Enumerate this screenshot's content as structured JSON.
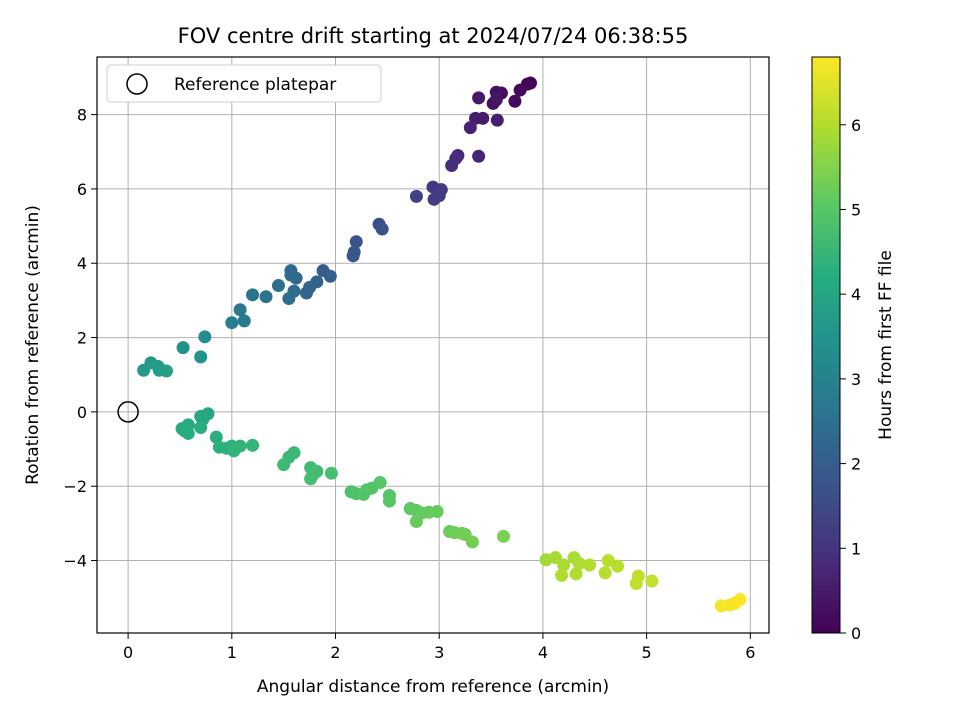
{
  "chart_data": {
    "type": "scatter",
    "title": "FOV centre drift starting at 2024/07/24 06:38:55",
    "xlabel": "Angular distance from reference (arcmin)",
    "ylabel": "Rotation from reference (arcmin)",
    "xlim": [
      -0.3,
      6.18
    ],
    "ylim": [
      -5.95,
      9.55
    ],
    "xticks": [
      0,
      1,
      2,
      3,
      4,
      5,
      6
    ],
    "yticks": [
      -4,
      -2,
      0,
      2,
      4,
      6,
      8
    ],
    "xtick_labels": [
      "0",
      "1",
      "2",
      "3",
      "4",
      "5",
      "6"
    ],
    "ytick_labels": [
      "−4",
      "−2",
      "0",
      "2",
      "4",
      "6",
      "8"
    ],
    "grid": true,
    "legend": {
      "position": "top-left",
      "label": "Reference platepar",
      "marker": "hollow-circle"
    },
    "reference_point": {
      "x": 0,
      "y": 0
    },
    "colorbar": {
      "label": "Hours from first FF file",
      "range": [
        0,
        6.8
      ],
      "ticks": [
        0,
        1,
        2,
        3,
        4,
        5,
        6
      ],
      "tick_labels": [
        "0",
        "1",
        "2",
        "3",
        "4",
        "5",
        "6"
      ],
      "colormap": "viridis"
    },
    "points": [
      {
        "x": 3.88,
        "y": 8.85,
        "h": 0.05
      },
      {
        "x": 3.85,
        "y": 8.82,
        "h": 0.1
      },
      {
        "x": 3.78,
        "y": 8.66,
        "h": 0.15
      },
      {
        "x": 3.73,
        "y": 8.36,
        "h": 0.2
      },
      {
        "x": 3.6,
        "y": 8.58,
        "h": 0.25
      },
      {
        "x": 3.55,
        "y": 8.6,
        "h": 0.3
      },
      {
        "x": 3.52,
        "y": 8.3,
        "h": 0.35
      },
      {
        "x": 3.55,
        "y": 8.4,
        "h": 0.4
      },
      {
        "x": 3.38,
        "y": 8.45,
        "h": 0.45
      },
      {
        "x": 3.42,
        "y": 7.9,
        "h": 0.5
      },
      {
        "x": 3.35,
        "y": 7.9,
        "h": 0.55
      },
      {
        "x": 3.56,
        "y": 7.85,
        "h": 0.6
      },
      {
        "x": 3.3,
        "y": 7.65,
        "h": 0.65
      },
      {
        "x": 3.38,
        "y": 6.88,
        "h": 0.7
      },
      {
        "x": 3.18,
        "y": 6.9,
        "h": 0.8
      },
      {
        "x": 3.16,
        "y": 6.82,
        "h": 0.85
      },
      {
        "x": 3.12,
        "y": 6.63,
        "h": 0.9
      },
      {
        "x": 2.94,
        "y": 6.05,
        "h": 1.1
      },
      {
        "x": 3.02,
        "y": 5.98,
        "h": 1.15
      },
      {
        "x": 3.0,
        "y": 5.82,
        "h": 1.2
      },
      {
        "x": 2.95,
        "y": 5.72,
        "h": 1.25
      },
      {
        "x": 2.78,
        "y": 5.8,
        "h": 1.3
      },
      {
        "x": 2.42,
        "y": 5.05,
        "h": 1.6
      },
      {
        "x": 2.45,
        "y": 4.92,
        "h": 1.65
      },
      {
        "x": 2.2,
        "y": 4.58,
        "h": 1.75
      },
      {
        "x": 2.18,
        "y": 4.3,
        "h": 1.8
      },
      {
        "x": 2.17,
        "y": 4.2,
        "h": 1.85
      },
      {
        "x": 1.88,
        "y": 3.8,
        "h": 2.0
      },
      {
        "x": 1.95,
        "y": 3.65,
        "h": 2.05
      },
      {
        "x": 1.82,
        "y": 3.5,
        "h": 2.1
      },
      {
        "x": 1.75,
        "y": 3.35,
        "h": 2.15
      },
      {
        "x": 1.72,
        "y": 3.2,
        "h": 2.2
      },
      {
        "x": 1.62,
        "y": 3.6,
        "h": 2.25
      },
      {
        "x": 1.57,
        "y": 3.8,
        "h": 2.3
      },
      {
        "x": 1.57,
        "y": 3.68,
        "h": 2.35
      },
      {
        "x": 1.6,
        "y": 3.25,
        "h": 2.4
      },
      {
        "x": 1.55,
        "y": 3.05,
        "h": 2.45
      },
      {
        "x": 1.45,
        "y": 3.4,
        "h": 2.5
      },
      {
        "x": 1.33,
        "y": 3.1,
        "h": 2.55
      },
      {
        "x": 1.2,
        "y": 3.15,
        "h": 2.6
      },
      {
        "x": 1.08,
        "y": 2.75,
        "h": 2.7
      },
      {
        "x": 1.12,
        "y": 2.45,
        "h": 2.75
      },
      {
        "x": 1.0,
        "y": 2.4,
        "h": 2.85
      },
      {
        "x": 0.74,
        "y": 2.02,
        "h": 3.3
      },
      {
        "x": 0.53,
        "y": 1.73,
        "h": 3.4
      },
      {
        "x": 0.7,
        "y": 1.48,
        "h": 3.45
      },
      {
        "x": 0.29,
        "y": 1.22,
        "h": 3.6
      },
      {
        "x": 0.22,
        "y": 1.32,
        "h": 3.65
      },
      {
        "x": 0.15,
        "y": 1.12,
        "h": 3.7
      },
      {
        "x": 0.3,
        "y": 1.12,
        "h": 3.75
      },
      {
        "x": 0.37,
        "y": 1.1,
        "h": 3.8
      },
      {
        "x": 0.77,
        "y": -0.05,
        "h": 4.0
      },
      {
        "x": 0.7,
        "y": -0.12,
        "h": 4.05
      },
      {
        "x": 0.72,
        "y": -0.2,
        "h": 4.08
      },
      {
        "x": 0.58,
        "y": -0.35,
        "h": 4.1
      },
      {
        "x": 0.52,
        "y": -0.45,
        "h": 4.15
      },
      {
        "x": 0.55,
        "y": -0.52,
        "h": 4.18
      },
      {
        "x": 0.58,
        "y": -0.58,
        "h": 4.2
      },
      {
        "x": 0.7,
        "y": -0.42,
        "h": 4.22
      },
      {
        "x": 0.85,
        "y": -0.68,
        "h": 4.25
      },
      {
        "x": 0.88,
        "y": -0.95,
        "h": 4.3
      },
      {
        "x": 0.95,
        "y": -0.98,
        "h": 4.33
      },
      {
        "x": 1.0,
        "y": -0.92,
        "h": 4.36
      },
      {
        "x": 1.02,
        "y": -1.05,
        "h": 4.4
      },
      {
        "x": 1.08,
        "y": -0.92,
        "h": 4.42
      },
      {
        "x": 1.2,
        "y": -0.9,
        "h": 4.45
      },
      {
        "x": 1.6,
        "y": -1.1,
        "h": 4.55
      },
      {
        "x": 1.55,
        "y": -1.22,
        "h": 4.58
      },
      {
        "x": 1.5,
        "y": -1.42,
        "h": 4.6
      },
      {
        "x": 1.76,
        "y": -1.5,
        "h": 4.65
      },
      {
        "x": 1.82,
        "y": -1.6,
        "h": 4.68
      },
      {
        "x": 1.78,
        "y": -1.7,
        "h": 4.7
      },
      {
        "x": 1.76,
        "y": -1.8,
        "h": 4.72
      },
      {
        "x": 1.96,
        "y": -1.65,
        "h": 4.75
      },
      {
        "x": 2.15,
        "y": -2.15,
        "h": 4.85
      },
      {
        "x": 2.2,
        "y": -2.2,
        "h": 4.87
      },
      {
        "x": 2.27,
        "y": -2.22,
        "h": 4.9
      },
      {
        "x": 2.3,
        "y": -2.1,
        "h": 4.92
      },
      {
        "x": 2.35,
        "y": -2.05,
        "h": 4.94
      },
      {
        "x": 2.43,
        "y": -1.9,
        "h": 4.96
      },
      {
        "x": 2.52,
        "y": -2.25,
        "h": 4.98
      },
      {
        "x": 2.52,
        "y": -2.4,
        "h": 5.0
      },
      {
        "x": 2.72,
        "y": -2.6,
        "h": 5.1
      },
      {
        "x": 2.78,
        "y": -2.65,
        "h": 5.12
      },
      {
        "x": 2.83,
        "y": -2.72,
        "h": 5.14
      },
      {
        "x": 2.9,
        "y": -2.7,
        "h": 5.16
      },
      {
        "x": 2.98,
        "y": -2.68,
        "h": 5.18
      },
      {
        "x": 2.78,
        "y": -2.95,
        "h": 5.2
      },
      {
        "x": 3.1,
        "y": -3.22,
        "h": 5.25
      },
      {
        "x": 3.15,
        "y": -3.25,
        "h": 5.27
      },
      {
        "x": 3.22,
        "y": -3.27,
        "h": 5.29
      },
      {
        "x": 3.25,
        "y": -3.3,
        "h": 5.31
      },
      {
        "x": 3.32,
        "y": -3.5,
        "h": 5.33
      },
      {
        "x": 3.62,
        "y": -3.35,
        "h": 5.4
      },
      {
        "x": 4.03,
        "y": -3.98,
        "h": 5.85
      },
      {
        "x": 4.12,
        "y": -3.92,
        "h": 5.88
      },
      {
        "x": 4.2,
        "y": -4.12,
        "h": 5.9
      },
      {
        "x": 4.3,
        "y": -3.92,
        "h": 5.92
      },
      {
        "x": 4.35,
        "y": -4.08,
        "h": 5.94
      },
      {
        "x": 4.18,
        "y": -4.4,
        "h": 5.96
      },
      {
        "x": 4.32,
        "y": -4.36,
        "h": 5.98
      },
      {
        "x": 4.45,
        "y": -4.12,
        "h": 6.0
      },
      {
        "x": 4.6,
        "y": -4.33,
        "h": 6.05
      },
      {
        "x": 4.63,
        "y": -4.0,
        "h": 6.08
      },
      {
        "x": 4.72,
        "y": -4.15,
        "h": 6.1
      },
      {
        "x": 4.92,
        "y": -4.42,
        "h": 6.15
      },
      {
        "x": 4.9,
        "y": -4.62,
        "h": 6.18
      },
      {
        "x": 5.05,
        "y": -4.55,
        "h": 6.2
      },
      {
        "x": 5.72,
        "y": -5.22,
        "h": 6.7
      },
      {
        "x": 5.8,
        "y": -5.2,
        "h": 6.72
      },
      {
        "x": 5.85,
        "y": -5.15,
        "h": 6.75
      },
      {
        "x": 5.9,
        "y": -5.05,
        "h": 6.78
      }
    ]
  }
}
